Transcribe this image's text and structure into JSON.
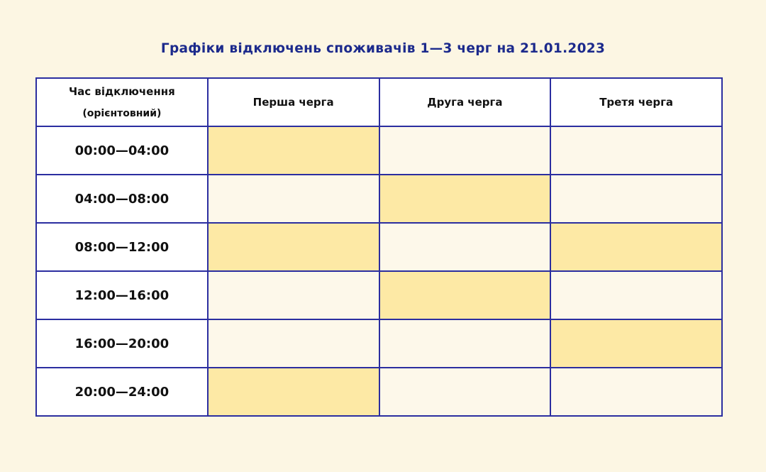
{
  "title": "Графіки відключень споживачів 1—3 черг на 21.01.2023",
  "header": {
    "time_line1": "Час відключення",
    "time_line2": "(орієнтовний)",
    "queues": [
      "Перша черга",
      "Друга черга",
      "Третя черга"
    ]
  },
  "colors": {
    "outage": "#fde9a5",
    "no_outage": "#fdf8ea",
    "border": "#2b2ea0",
    "title": "#1c2a8c"
  },
  "rows": [
    {
      "time": "00:00—04:00",
      "outage": [
        true,
        false,
        false
      ]
    },
    {
      "time": "04:00—08:00",
      "outage": [
        false,
        true,
        false
      ]
    },
    {
      "time": "08:00—12:00",
      "outage": [
        true,
        false,
        true
      ]
    },
    {
      "time": "12:00—16:00",
      "outage": [
        false,
        true,
        false
      ]
    },
    {
      "time": "16:00—20:00",
      "outage": [
        false,
        false,
        true
      ]
    },
    {
      "time": "20:00—24:00",
      "outage": [
        true,
        false,
        false
      ]
    }
  ]
}
